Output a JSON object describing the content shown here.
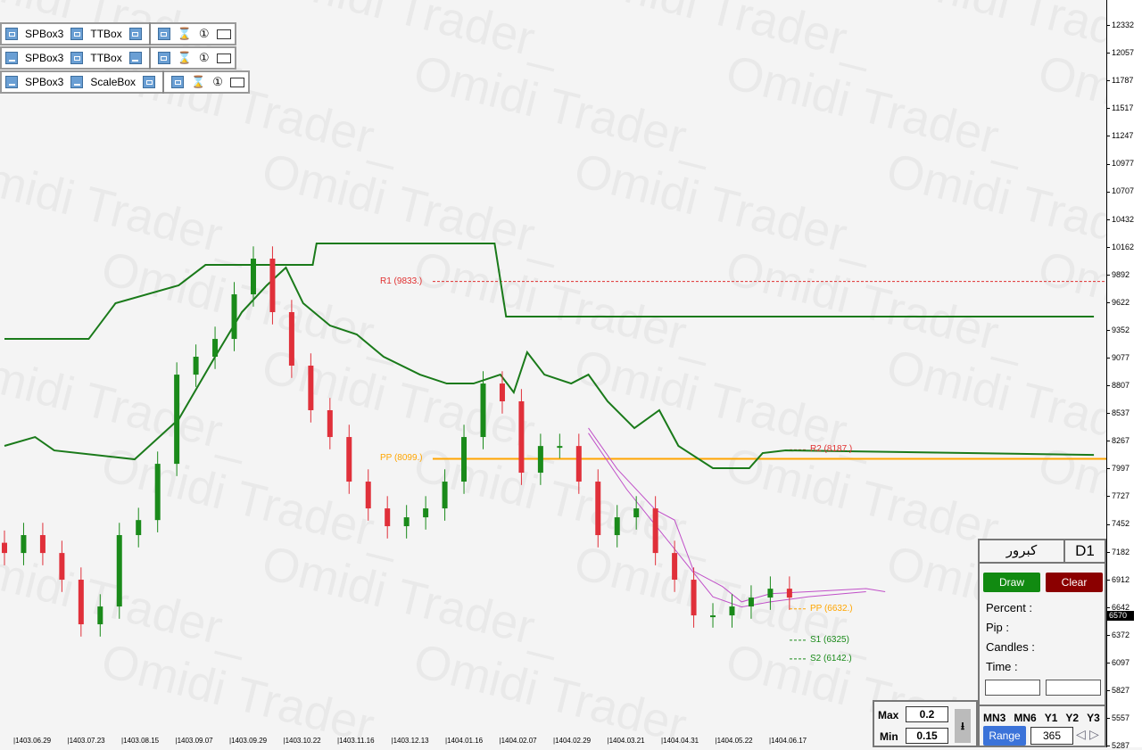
{
  "watermark": "Omidi Trader_",
  "toolbar_rows": [
    {
      "a": "SPBox3",
      "b": "TTBox"
    },
    {
      "a": "SPBox3",
      "b": "TTBox"
    },
    {
      "a": "SPBox3",
      "b": "ScaleBox"
    }
  ],
  "toolbar_icons": {
    "hourglass": "⌛",
    "one": "①",
    "folder": "folder-icon"
  },
  "price_axis": [
    "12332",
    "12057",
    "11787",
    "11517",
    "11247",
    "10977",
    "10707",
    "10432",
    "10162",
    "9892",
    "9622",
    "9352",
    "9077",
    "8807",
    "8537",
    "8267",
    "7997",
    "7727",
    "7452",
    "7182",
    "6912",
    "6642",
    "6372",
    "6097",
    "5827",
    "5557",
    "5287"
  ],
  "current_price": "6570",
  "date_axis": [
    "|1403.06.29",
    "|1403.07.23",
    "|1403.08.15",
    "|1403.09.07",
    "|1403.09.29",
    "|1403.10.22",
    "|1403.11.16",
    "|1403.12.13",
    "|1404.01.16",
    "|1404.02.07",
    "|1404.02.29",
    "|1404.03.21",
    "|1404.04.31",
    "|1404.05.22",
    "|1404.06.17"
  ],
  "levels": {
    "r1": {
      "label": "R1 (9833.)",
      "price": 9833,
      "color": "#e03030"
    },
    "pp_main": {
      "label": "PP (8099.)",
      "price": 8099,
      "color": "#ffa500"
    },
    "r2": {
      "label": "R2 (8187.)",
      "price": 8187,
      "color": "#e03030"
    },
    "pp": {
      "label": "PP (6632.)",
      "price": 6632,
      "color": "#ffa500"
    },
    "s1": {
      "label": "S1 (6325)",
      "price": 6325,
      "color": "#1a8a1a"
    },
    "s2": {
      "label": "S2 (6142.)",
      "price": 6142,
      "color": "#1a8a1a"
    }
  },
  "panel": {
    "symbol": "کبرور",
    "timeframe": "D1",
    "draw": "Draw",
    "clear": "Clear",
    "percent": "Percent :",
    "pip": "Pip :",
    "candles": "Candles :",
    "time": "Time :",
    "timeframes": [
      "MN3",
      "MN6",
      "Y1",
      "Y2",
      "Y3"
    ],
    "range": "Range",
    "range_value": "365",
    "prev": "◁",
    "next": "▷"
  },
  "maxmin": {
    "max_label": "Max",
    "max_value": "0.2",
    "min_label": "Min",
    "min_value": "0.15",
    "sort_icon": "⭳"
  },
  "chart_data": {
    "type": "candlestick",
    "price_range": [
      5287,
      12332
    ],
    "closes": [
      7178,
      7353,
      7178,
      6917,
      6481,
      6655,
      7353,
      7500,
      8050,
      8922,
      9097,
      9271,
      9707,
      10056,
      9533,
      9010,
      8574,
      8312,
      7876,
      7614,
      7440,
      7527,
      7614,
      7876,
      8312,
      8835,
      8661,
      7963,
      8224,
      8224,
      7876,
      7353,
      7527,
      7614,
      7178,
      6917,
      6568,
      6568,
      6655,
      6742,
      6829,
      6742
    ],
    "upper_band": [
      [
        0,
        9271
      ],
      [
        4.4,
        9271
      ],
      [
        5.8,
        9620
      ],
      [
        9.1,
        9795
      ],
      [
        10.5,
        9995
      ],
      [
        16.1,
        9995
      ],
      [
        16.3,
        10204
      ],
      [
        25.6,
        10204
      ],
      [
        26.2,
        9489
      ],
      [
        56.9,
        9489
      ]
    ],
    "middle_band": [
      [
        0,
        8225
      ],
      [
        1.6,
        8312
      ],
      [
        2.6,
        8181
      ],
      [
        6.8,
        8094
      ],
      [
        9.1,
        8486
      ],
      [
        11,
        9097
      ],
      [
        12.4,
        9533
      ],
      [
        13.7,
        9795
      ],
      [
        14.7,
        9969
      ],
      [
        15.6,
        9620
      ],
      [
        17,
        9402
      ],
      [
        18.4,
        9315
      ],
      [
        19.8,
        9097
      ],
      [
        21.7,
        8922
      ],
      [
        23.1,
        8835
      ],
      [
        24.5,
        8835
      ],
      [
        25.9,
        8922
      ],
      [
        26.6,
        8748
      ],
      [
        27.3,
        9141
      ],
      [
        28.2,
        8922
      ],
      [
        29.6,
        8835
      ],
      [
        30.5,
        8922
      ],
      [
        31.5,
        8661
      ],
      [
        32.9,
        8399
      ],
      [
        34.2,
        8574
      ],
      [
        35.2,
        8225
      ],
      [
        37,
        8007
      ],
      [
        38.9,
        8007
      ],
      [
        39.6,
        8155
      ],
      [
        40.8,
        8181
      ],
      [
        56.9,
        8137
      ]
    ],
    "magenta_1": [
      [
        30.5,
        8400
      ],
      [
        32,
        8000
      ],
      [
        34,
        7600
      ],
      [
        35,
        7500
      ],
      [
        36,
        7000
      ],
      [
        37.5,
        6850
      ],
      [
        38.5,
        6700
      ],
      [
        40,
        6780
      ],
      [
        42,
        6800
      ],
      [
        45,
        6830
      ],
      [
        46,
        6800
      ]
    ],
    "magenta_2": [
      [
        30.5,
        8350
      ],
      [
        32.5,
        7800
      ],
      [
        34,
        7450
      ],
      [
        35.5,
        7100
      ],
      [
        37,
        6750
      ],
      [
        38.5,
        6650
      ],
      [
        40,
        6700
      ],
      [
        42,
        6750
      ],
      [
        45,
        6800
      ]
    ]
  }
}
